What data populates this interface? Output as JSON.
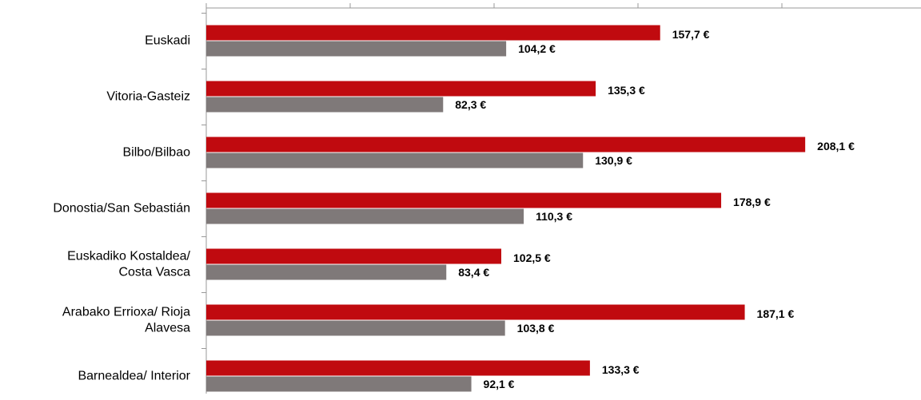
{
  "chart_data": {
    "type": "hbar",
    "categories": [
      "Euskadi",
      "Vitoria-Gasteiz",
      "Bilbo/Bilbao",
      "Donostia/San Sebastián",
      "Euskadiko Kostaldea/\nCosta Vasca",
      "Arabako Errioxa/ Rioja\nAlavesa",
      "Barnealdea/ Interior"
    ],
    "series": [
      {
        "color": "#c00a0f",
        "values": [
          157.7,
          135.3,
          208.1,
          178.9,
          102.5,
          187.1,
          133.3
        ],
        "value_labels": [
          "157,7 €",
          "135,3 €",
          "208,1 €",
          "178,9 €",
          "102,5 €",
          "187,1 €",
          "133,3 €"
        ]
      },
      {
        "color": "#7f7979",
        "values": [
          104.2,
          82.3,
          130.9,
          110.3,
          83.4,
          103.8,
          92.1
        ],
        "value_labels": [
          "104,2 €",
          "82,3 €",
          "130,9 €",
          "110,3 €",
          "83,4 €",
          "103,8 €",
          "92,1 €"
        ]
      }
    ],
    "xlim": [
      0,
      250
    ],
    "xticks": [
      0,
      50,
      100,
      150,
      200,
      250
    ]
  }
}
